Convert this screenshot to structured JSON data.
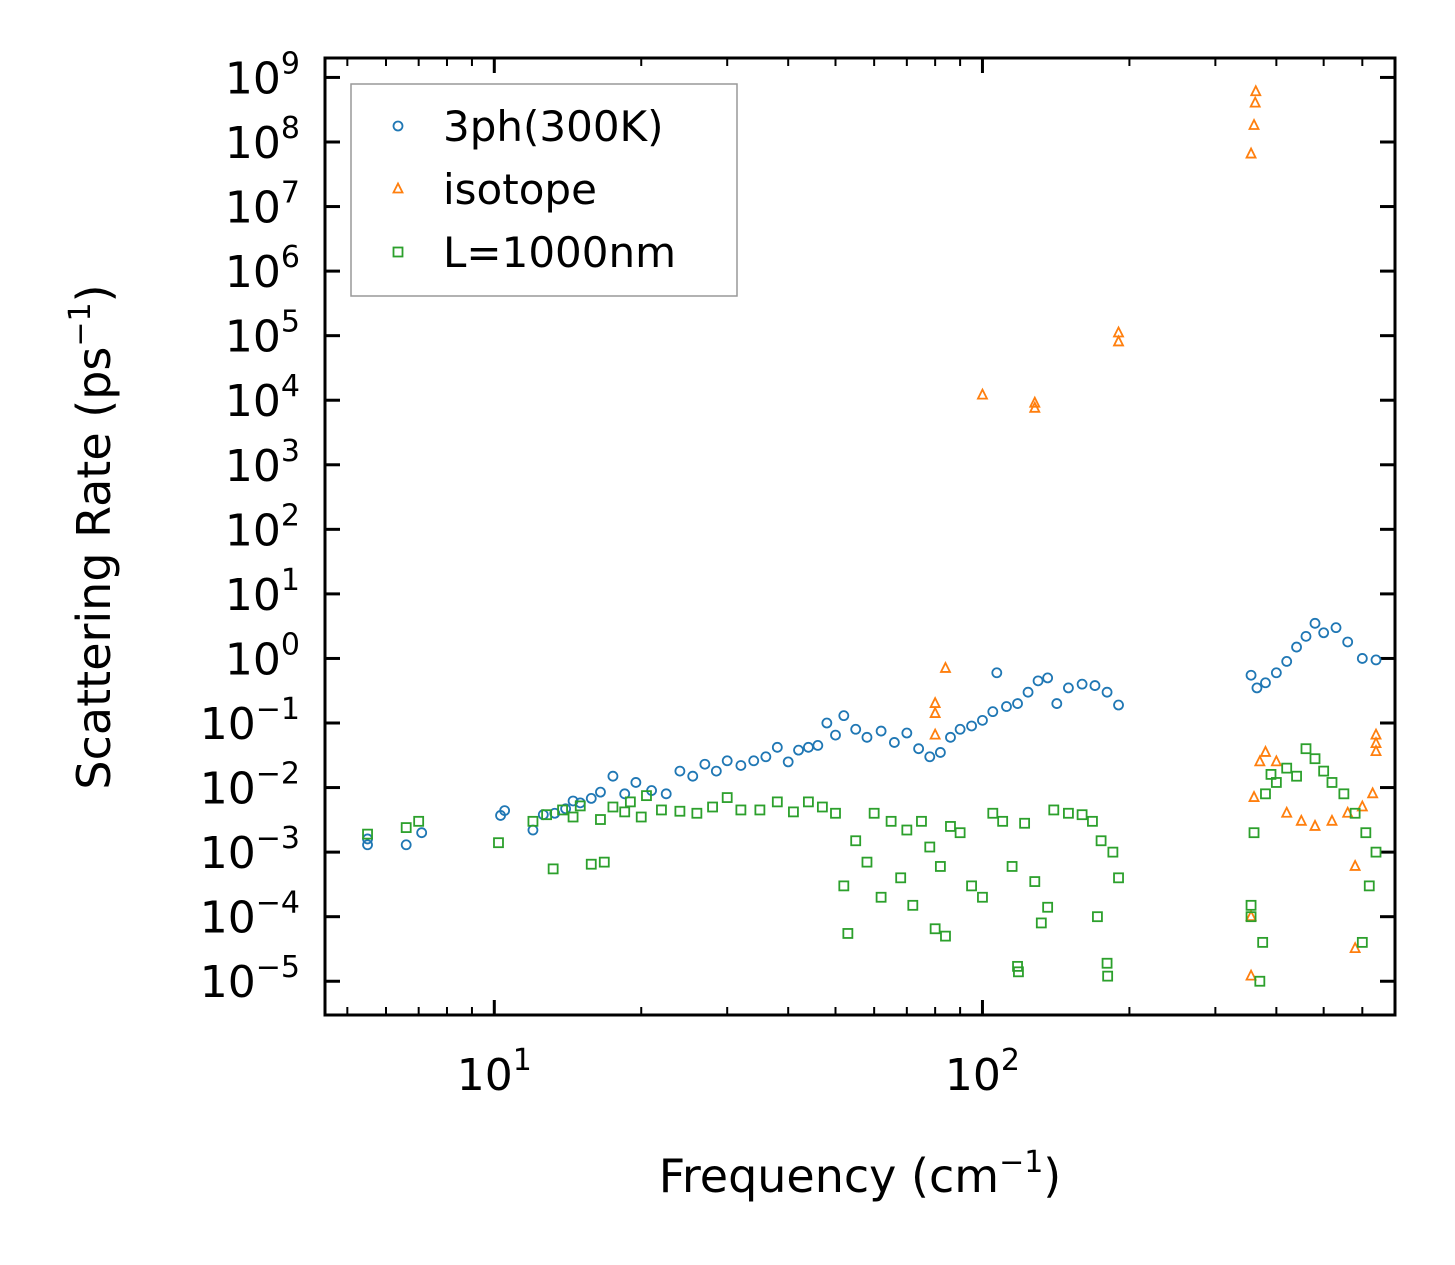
{
  "chart_data": {
    "type": "scatter",
    "xlabel": "Frequency (cm",
    "xlabel_sup": "−1",
    "xlabel_tail": ")",
    "ylabel": "Scattering Rate (ps",
    "ylabel_sup": "−1",
    "ylabel_tail": ")",
    "xscale": "log",
    "yscale": "log",
    "xlim": [
      4.5,
      700
    ],
    "ylim": [
      3e-06,
      2000000000.0
    ],
    "x_ticks": [
      {
        "base": "10",
        "exp": "1",
        "value": 10
      },
      {
        "base": "10",
        "exp": "2",
        "value": 100
      }
    ],
    "y_ticks": [
      {
        "base": "10",
        "exp": "9",
        "value": 1000000000.0
      },
      {
        "base": "10",
        "exp": "8",
        "value": 100000000.0
      },
      {
        "base": "10",
        "exp": "7",
        "value": 10000000.0
      },
      {
        "base": "10",
        "exp": "6",
        "value": 1000000.0
      },
      {
        "base": "10",
        "exp": "5",
        "value": 100000.0
      },
      {
        "base": "10",
        "exp": "4",
        "value": 10000.0
      },
      {
        "base": "10",
        "exp": "3",
        "value": 1000.0
      },
      {
        "base": "10",
        "exp": "2",
        "value": 100.0
      },
      {
        "base": "10",
        "exp": "1",
        "value": 10.0
      },
      {
        "base": "10",
        "exp": "0",
        "value": 1
      },
      {
        "base": "10",
        "exp": "−1",
        "value": 0.1
      },
      {
        "base": "10",
        "exp": "−2",
        "value": 0.01
      },
      {
        "base": "10",
        "exp": "−3",
        "value": 0.001
      },
      {
        "base": "10",
        "exp": "−4",
        "value": 0.0001
      },
      {
        "base": "10",
        "exp": "−5",
        "value": 1e-05
      }
    ],
    "legend_position": "top-left",
    "series": [
      {
        "name": "3ph(300K)",
        "marker": "circle",
        "color": "#1f77b4",
        "points": [
          [
            5.5,
            0.0013
          ],
          [
            5.5,
            0.0016
          ],
          [
            6.6,
            0.0013
          ],
          [
            7.1,
            0.002
          ],
          [
            10.3,
            0.0037
          ],
          [
            10.5,
            0.0044
          ],
          [
            12.0,
            0.0022
          ],
          [
            12.6,
            0.0038
          ],
          [
            13.3,
            0.004
          ],
          [
            14.0,
            0.0047
          ],
          [
            14.5,
            0.0062
          ],
          [
            15.0,
            0.0058
          ],
          [
            15.8,
            0.0068
          ],
          [
            16.5,
            0.0085
          ],
          [
            17.5,
            0.015
          ],
          [
            18.5,
            0.008
          ],
          [
            19.5,
            0.012
          ],
          [
            21.0,
            0.009
          ],
          [
            22.5,
            0.008
          ],
          [
            24.0,
            0.018
          ],
          [
            25.5,
            0.015
          ],
          [
            27.0,
            0.023
          ],
          [
            28.5,
            0.018
          ],
          [
            30.0,
            0.026
          ],
          [
            32.0,
            0.022
          ],
          [
            34.0,
            0.026
          ],
          [
            36.0,
            0.03
          ],
          [
            38.0,
            0.042
          ],
          [
            40.0,
            0.025
          ],
          [
            42.0,
            0.038
          ],
          [
            44.0,
            0.042
          ],
          [
            46.0,
            0.045
          ],
          [
            48.0,
            0.1
          ],
          [
            50.0,
            0.065
          ],
          [
            52.0,
            0.13
          ],
          [
            55.0,
            0.08
          ],
          [
            58.0,
            0.06
          ],
          [
            62.0,
            0.075
          ],
          [
            66.0,
            0.05
          ],
          [
            70.0,
            0.07
          ],
          [
            74.0,
            0.04
          ],
          [
            78.0,
            0.03
          ],
          [
            82.0,
            0.035
          ],
          [
            86.0,
            0.06
          ],
          [
            90.0,
            0.08
          ],
          [
            95.0,
            0.09
          ],
          [
            100.0,
            0.11
          ],
          [
            105.0,
            0.15
          ],
          [
            107.0,
            0.6
          ],
          [
            112.0,
            0.18
          ],
          [
            118.0,
            0.2
          ],
          [
            124.0,
            0.3
          ],
          [
            130.0,
            0.45
          ],
          [
            136.0,
            0.5
          ],
          [
            142.0,
            0.2
          ],
          [
            150.0,
            0.35
          ],
          [
            160.0,
            0.4
          ],
          [
            170.0,
            0.38
          ],
          [
            180.0,
            0.3
          ],
          [
            190.0,
            0.19
          ],
          [
            355.0,
            0.55
          ],
          [
            365.0,
            0.35
          ],
          [
            380.0,
            0.42
          ],
          [
            400.0,
            0.6
          ],
          [
            420.0,
            0.9
          ],
          [
            440.0,
            1.5
          ],
          [
            460.0,
            2.2
          ],
          [
            480.0,
            3.5
          ],
          [
            500.0,
            2.5
          ],
          [
            530.0,
            3.0
          ],
          [
            560.0,
            1.8
          ],
          [
            600.0,
            1.0
          ],
          [
            640.0,
            0.95
          ]
        ]
      },
      {
        "name": "isotope",
        "marker": "triangle",
        "color": "#ff7f0e",
        "points": [
          [
            80.0,
            0.2
          ],
          [
            80.0,
            0.14
          ],
          [
            80.0,
            0.065
          ],
          [
            84.0,
            0.7
          ],
          [
            100.0,
            12000
          ],
          [
            128.0,
            9000
          ],
          [
            128.0,
            7500
          ],
          [
            190.0,
            110000
          ],
          [
            190.0,
            80000
          ],
          [
            355.0,
            65000000
          ],
          [
            360.0,
            180000000
          ],
          [
            362.0,
            400000000
          ],
          [
            363.0,
            600000000
          ],
          [
            355.0,
            1.2e-05
          ],
          [
            355.0,
            0.0001
          ],
          [
            360.0,
            0.007
          ],
          [
            370.0,
            0.025
          ],
          [
            380.0,
            0.035
          ],
          [
            400.0,
            0.025
          ],
          [
            420.0,
            0.004
          ],
          [
            450.0,
            0.003
          ],
          [
            480.0,
            0.0025
          ],
          [
            520.0,
            0.003
          ],
          [
            560.0,
            0.004
          ],
          [
            580.0,
            3.2e-05
          ],
          [
            580.0,
            0.0006
          ],
          [
            600.0,
            0.005
          ],
          [
            630.0,
            0.008
          ],
          [
            640.0,
            0.065
          ],
          [
            640.0,
            0.048
          ],
          [
            640.0,
            0.036
          ]
        ]
      },
      {
        "name": "L=1000nm",
        "marker": "square",
        "color": "#2ca02c",
        "points": [
          [
            5.5,
            0.0019
          ],
          [
            6.6,
            0.0024
          ],
          [
            7.0,
            0.003
          ],
          [
            10.2,
            0.0014
          ],
          [
            12.0,
            0.003
          ],
          [
            12.8,
            0.0038
          ],
          [
            13.2,
            0.00055
          ],
          [
            13.8,
            0.0045
          ],
          [
            14.5,
            0.0035
          ],
          [
            15.0,
            0.0052
          ],
          [
            15.8,
            0.00065
          ],
          [
            16.5,
            0.0032
          ],
          [
            16.8,
            0.0007
          ],
          [
            17.5,
            0.005
          ],
          [
            18.5,
            0.0042
          ],
          [
            19.0,
            0.006
          ],
          [
            20.0,
            0.0035
          ],
          [
            20.5,
            0.0075
          ],
          [
            22.0,
            0.0045
          ],
          [
            24.0,
            0.0043
          ],
          [
            26.0,
            0.004
          ],
          [
            28.0,
            0.005
          ],
          [
            30.0,
            0.007
          ],
          [
            32.0,
            0.0045
          ],
          [
            35.0,
            0.0045
          ],
          [
            38.0,
            0.006
          ],
          [
            41.0,
            0.0042
          ],
          [
            44.0,
            0.006
          ],
          [
            47.0,
            0.005
          ],
          [
            50.0,
            0.004
          ],
          [
            52.0,
            0.0003
          ],
          [
            53.0,
            5.5e-05
          ],
          [
            55.0,
            0.0015
          ],
          [
            58.0,
            0.0007
          ],
          [
            60.0,
            0.004
          ],
          [
            62.0,
            0.0002
          ],
          [
            65.0,
            0.003
          ],
          [
            68.0,
            0.0004
          ],
          [
            70.0,
            0.0022
          ],
          [
            72.0,
            0.00015
          ],
          [
            75.0,
            0.003
          ],
          [
            78.0,
            0.0012
          ],
          [
            80.0,
            6.5e-05
          ],
          [
            82.0,
            0.0006
          ],
          [
            84.0,
            5e-05
          ],
          [
            86.0,
            0.0025
          ],
          [
            90.0,
            0.002
          ],
          [
            95.0,
            0.0003
          ],
          [
            100.0,
            0.0002
          ],
          [
            105.0,
            0.004
          ],
          [
            110.0,
            0.003
          ],
          [
            115.0,
            0.0006
          ],
          [
            118.0,
            1.7e-05
          ],
          [
            118.5,
            1.4e-05
          ],
          [
            122.0,
            0.0028
          ],
          [
            128.0,
            0.00035
          ],
          [
            132.0,
            8e-05
          ],
          [
            136.0,
            0.00014
          ],
          [
            140.0,
            0.0045
          ],
          [
            150.0,
            0.004
          ],
          [
            160.0,
            0.0038
          ],
          [
            168.0,
            0.003
          ],
          [
            172.0,
            0.0001
          ],
          [
            175.0,
            0.0015
          ],
          [
            180.0,
            1.9e-05
          ],
          [
            180.5,
            1.2e-05
          ],
          [
            185.0,
            0.001
          ],
          [
            190.0,
            0.0004
          ],
          [
            355.0,
            0.0001
          ],
          [
            355.0,
            0.00015
          ],
          [
            360.0,
            0.002
          ],
          [
            370.0,
            1e-05
          ],
          [
            375.0,
            4e-05
          ],
          [
            380.0,
            0.008
          ],
          [
            390.0,
            0.016
          ],
          [
            400.0,
            0.012
          ],
          [
            420.0,
            0.02
          ],
          [
            440.0,
            0.015
          ],
          [
            460.0,
            0.04
          ],
          [
            480.0,
            0.028
          ],
          [
            500.0,
            0.018
          ],
          [
            520.0,
            0.012
          ],
          [
            550.0,
            0.008
          ],
          [
            580.0,
            0.004
          ],
          [
            600.0,
            4e-05
          ],
          [
            610.0,
            0.002
          ],
          [
            620.0,
            0.0003
          ],
          [
            640.0,
            0.001
          ]
        ]
      }
    ]
  }
}
